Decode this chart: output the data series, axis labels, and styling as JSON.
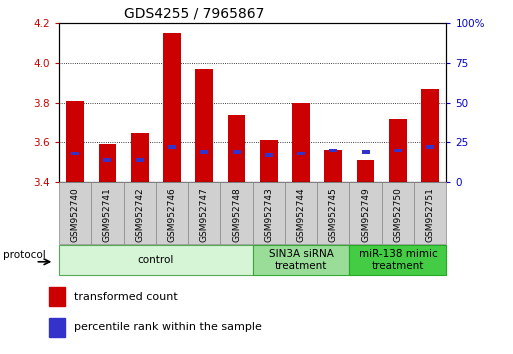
{
  "title": "GDS4255 / 7965867",
  "samples": [
    "GSM952740",
    "GSM952741",
    "GSM952742",
    "GSM952746",
    "GSM952747",
    "GSM952748",
    "GSM952743",
    "GSM952744",
    "GSM952745",
    "GSM952749",
    "GSM952750",
    "GSM952751"
  ],
  "transformed_counts": [
    3.81,
    3.59,
    3.65,
    4.15,
    3.97,
    3.74,
    3.61,
    3.8,
    3.56,
    3.51,
    3.72,
    3.87
  ],
  "percentile_ranks": [
    18,
    14,
    14,
    22,
    19,
    19,
    17,
    18,
    20,
    19,
    20,
    22
  ],
  "bar_bottom": 3.4,
  "ylim": [
    3.4,
    4.2
  ],
  "y_right_ticks": [
    0,
    25,
    50,
    75,
    100
  ],
  "y_left_ticks": [
    3.4,
    3.6,
    3.8,
    4.0,
    4.2
  ],
  "red_color": "#cc0000",
  "blue_color": "#3333cc",
  "bar_width": 0.55,
  "groups": [
    {
      "label": "control",
      "indices": [
        0,
        1,
        2,
        3,
        4,
        5
      ],
      "color": "#d6f5d6",
      "edge_color": "#55aa55"
    },
    {
      "label": "SIN3A siRNA\ntreatment",
      "indices": [
        6,
        7,
        8
      ],
      "color": "#99dd99",
      "edge_color": "#33aa33"
    },
    {
      "label": "miR-138 mimic\ntreatment",
      "indices": [
        9,
        10,
        11
      ],
      "color": "#44cc44",
      "edge_color": "#22aa22"
    }
  ],
  "tick_label_color_left": "#cc0000",
  "tick_label_color_right": "#0000cc",
  "title_fontsize": 10,
  "tick_fontsize": 7.5,
  "legend_fontsize": 8,
  "sample_label_fontsize": 6.5,
  "group_label_fontsize": 7.5
}
